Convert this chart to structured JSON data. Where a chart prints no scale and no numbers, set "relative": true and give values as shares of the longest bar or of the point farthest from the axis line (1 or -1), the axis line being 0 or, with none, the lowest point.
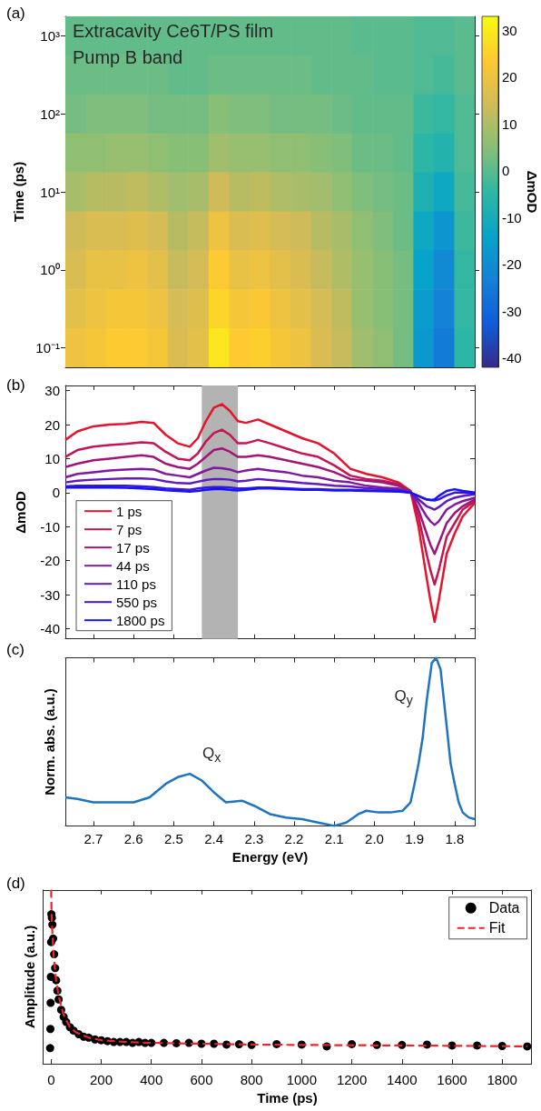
{
  "chart_data": [
    {
      "type": "heatmap",
      "title": "(a)",
      "ylabel": "Time (ps)",
      "clabel": "ΔmOD",
      "annotations": [
        "Extracavity Ce6T/PS film",
        "Pump B band"
      ],
      "categories": [
        null,
        null,
        null,
        null,
        null,
        null,
        null,
        null,
        null,
        null,
        null,
        null,
        null,
        null,
        null,
        null,
        null,
        null,
        null,
        null
      ],
      "y_categories": [
        "10³",
        null,
        "10²",
        null,
        "10¹",
        null,
        "10⁰",
        null,
        "10⁻¹"
      ],
      "cells": [
        [
          1,
          1,
          1,
          1,
          1,
          1,
          1,
          1,
          1,
          1,
          1,
          1,
          1,
          1,
          0,
          0,
          0,
          -1,
          -1,
          0
        ],
        [
          2,
          2,
          2,
          2,
          2,
          1,
          1,
          2,
          2,
          2,
          2,
          2,
          1,
          1,
          1,
          0,
          0,
          -1,
          -2,
          0
        ],
        [
          3,
          4,
          4,
          4,
          3,
          3,
          3,
          5,
          4,
          4,
          3,
          3,
          3,
          2,
          1,
          1,
          1,
          -3,
          -4,
          -1
        ],
        [
          6,
          6,
          7,
          7,
          6,
          5,
          5,
          8,
          7,
          7,
          6,
          6,
          5,
          4,
          2,
          2,
          1,
          -5,
          -7,
          -1
        ],
        [
          9,
          11,
          11,
          12,
          10,
          8,
          9,
          14,
          11,
          12,
          10,
          9,
          8,
          6,
          4,
          3,
          2,
          -8,
          -12,
          -2
        ],
        [
          14,
          16,
          16,
          17,
          15,
          11,
          13,
          20,
          16,
          17,
          15,
          14,
          11,
          9,
          6,
          4,
          2,
          -12,
          -18,
          -3
        ],
        [
          16,
          19,
          19,
          20,
          18,
          13,
          15,
          24,
          19,
          20,
          18,
          16,
          13,
          10,
          7,
          5,
          3,
          -14,
          -21,
          -4
        ],
        [
          18,
          20,
          22,
          22,
          20,
          15,
          17,
          26,
          22,
          23,
          20,
          18,
          15,
          12,
          7,
          5,
          3,
          -16,
          -23,
          -4
        ],
        [
          20,
          22,
          24,
          24,
          22,
          16,
          18,
          29,
          24,
          25,
          22,
          20,
          16,
          13,
          8,
          6,
          3,
          -17,
          -25,
          -5
        ]
      ],
      "clim": [
        -42,
        33
      ],
      "cticks": [
        -40,
        -30,
        -20,
        -10,
        0,
        10,
        20,
        30
      ],
      "tick_labels": "y"
    },
    {
      "type": "line",
      "title": "(b)",
      "ylabel": "ΔmOD",
      "x": [
        2.77,
        2.74,
        2.7,
        2.66,
        2.62,
        2.58,
        2.55,
        2.52,
        2.49,
        2.46,
        2.44,
        2.42,
        2.4,
        2.38,
        2.36,
        2.34,
        2.32,
        2.29,
        2.26,
        2.22,
        2.18,
        2.14,
        2.1,
        2.06,
        2.02,
        1.98,
        1.94,
        1.91,
        1.89,
        1.87,
        1.86,
        1.85,
        1.84,
        1.82,
        1.8,
        1.78,
        1.75
      ],
      "series": [
        {
          "name": "1 ps",
          "color": "#e5132b",
          "values": [
            15.5,
            18,
            19.5,
            20,
            20.2,
            20.8,
            20.5,
            17,
            14.5,
            13.5,
            16,
            21,
            25,
            26,
            24,
            21,
            20.5,
            21.5,
            20,
            18,
            16,
            14.5,
            11.5,
            7,
            5.5,
            4.5,
            3,
            0.5,
            -10,
            -25,
            -32,
            -38,
            -32,
            -18,
            -12,
            -7,
            -3
          ]
        },
        {
          "name": "7 ps",
          "color": "#c41554",
          "values": [
            10.5,
            12.5,
            13.5,
            14,
            14.3,
            14.8,
            14.5,
            12,
            10,
            9.5,
            11.5,
            15,
            17.5,
            18.5,
            17,
            14.5,
            14.5,
            15.5,
            14.5,
            13,
            11.5,
            10.5,
            8,
            5,
            4,
            3.5,
            2.5,
            0.5,
            -7,
            -18,
            -23,
            -27,
            -23,
            -13,
            -9,
            -5,
            -2.5
          ]
        },
        {
          "name": "17 ps",
          "color": "#a0157a",
          "values": [
            7.5,
            8.5,
            9.5,
            10,
            10.5,
            11,
            10.5,
            8.5,
            7.5,
            7,
            8.5,
            10.5,
            12.5,
            13,
            12,
            10.5,
            10.5,
            11,
            10.5,
            9.5,
            8.5,
            7.5,
            6,
            4,
            3.5,
            3,
            2,
            0.3,
            -5,
            -12,
            -15.5,
            -18,
            -15,
            -9,
            -6,
            -4,
            -2
          ]
        },
        {
          "name": "44 ps",
          "color": "#801a9e",
          "values": [
            4.5,
            5.5,
            6,
            6.5,
            6.8,
            7,
            6.8,
            5.5,
            5,
            4.5,
            5.5,
            6.5,
            7.3,
            7.2,
            6.8,
            6,
            6.5,
            7,
            6.5,
            6,
            5,
            4.5,
            3.5,
            3,
            2,
            1.5,
            1.2,
            0,
            -3,
            -7,
            -8.5,
            -9.5,
            -8.5,
            -5,
            -3.5,
            -2.5,
            -1.5
          ]
        },
        {
          "name": "110 ps",
          "color": "#6219c0",
          "values": [
            3,
            3.5,
            3.8,
            4,
            4.2,
            4.2,
            4,
            3.3,
            2.8,
            2.7,
            3.2,
            3.7,
            4,
            4,
            3.8,
            3.3,
            3.5,
            4,
            3.7,
            3.3,
            2.8,
            2.5,
            2,
            1.8,
            1.3,
            1,
            0.8,
            0,
            -2,
            -4,
            -4.5,
            -5,
            -4.3,
            -2.5,
            -1.5,
            -1,
            -0.5
          ]
        },
        {
          "name": "550 ps",
          "color": "#3a14e0",
          "values": [
            1.8,
            2,
            2,
            2,
            2,
            1.8,
            1.6,
            1.2,
            1,
            0.8,
            1.2,
            1.5,
            1.6,
            1.6,
            1.5,
            1.2,
            1.2,
            1.5,
            1.5,
            1.3,
            1,
            1,
            0.8,
            0.8,
            0.6,
            0.5,
            0.5,
            0,
            -1,
            -2,
            -2.2,
            -2.3,
            -2,
            -0.8,
            0,
            0,
            -0.3
          ]
        },
        {
          "name": "1800 ps",
          "color": "#1414f5",
          "values": [
            1.5,
            1.5,
            1.5,
            1.5,
            1.4,
            1.2,
            1,
            0.7,
            0.5,
            0.3,
            0.5,
            0.8,
            1,
            1,
            0.8,
            0.6,
            0.8,
            1.2,
            1.2,
            1,
            0.8,
            0.8,
            0.6,
            0.6,
            0.5,
            0.4,
            0.3,
            0,
            -1,
            -2,
            -2.2,
            -2,
            -1,
            0.5,
            1,
            0.5,
            0
          ]
        }
      ],
      "xlim": [
        2.77,
        1.75
      ],
      "xticks": [
        2.7,
        2.6,
        2.5,
        2.4,
        2.3,
        2.2,
        2.1,
        2,
        1.9,
        1.8
      ],
      "ylim": [
        -43,
        31.5
      ],
      "yticks": [
        -40,
        -30,
        -20,
        -10,
        0,
        10,
        20,
        30
      ],
      "bands": [
        {
          "axis": "x",
          "from": 2.43,
          "to": 2.34,
          "color": "#b3b3b3"
        }
      ],
      "legend": "bottom left",
      "tick_labels": "y"
    },
    {
      "type": "line",
      "title": "(c)",
      "xlabel": "Energy (eV)",
      "ylabel": "Norm. abs. (a.u.)",
      "relative": true,
      "x": [
        2.77,
        2.74,
        2.7,
        2.65,
        2.6,
        2.56,
        2.52,
        2.49,
        2.46,
        2.43,
        2.4,
        2.37,
        2.33,
        2.3,
        2.26,
        2.22,
        2.18,
        2.14,
        2.1,
        2.07,
        2.04,
        2.02,
        1.99,
        1.96,
        1.93,
        1.91,
        1.9,
        1.89,
        1.88,
        1.87,
        1.857,
        1.846,
        1.835,
        1.822,
        1.81,
        1.8,
        1.79,
        1.78,
        1.765,
        1.75
      ],
      "series": [
        {
          "color": "#1f74c0",
          "values": [
            0.17,
            0.16,
            0.14,
            0.14,
            0.14,
            0.17,
            0.25,
            0.29,
            0.31,
            0.27,
            0.2,
            0.14,
            0.15,
            0.12,
            0.07,
            0.05,
            0.04,
            0.02,
            0,
            0.02,
            0.07,
            0.09,
            0.08,
            0.08,
            0.09,
            0.14,
            0.25,
            0.37,
            0.52,
            0.74,
            0.97,
            1,
            0.93,
            0.64,
            0.37,
            0.25,
            0.14,
            0.08,
            0.05,
            0.04
          ]
        }
      ],
      "xlim": [
        2.77,
        1.75
      ],
      "xticks": [
        2.7,
        2.6,
        2.5,
        2.4,
        2.3,
        2.2,
        2.1,
        {
          "value": 2,
          "label": "2.0"
        },
        1.9,
        1.8
      ],
      "annotations": [
        {
          "text": "Q$_{x}$",
          "x": 2.46,
          "y": 0.31
        },
        {
          "text": "Q$_{y}$",
          "x": 1.846,
          "y": 1
        }
      ],
      "tick_labels": "x"
    },
    {
      "type": "scatter",
      "title": "(d)",
      "xlabel": "Time (ps)",
      "ylabel": "Amplitude (a.u.)",
      "relative": true,
      "series": [
        {
          "name": "Data",
          "type": "scatter",
          "color": "#000000",
          "marker": "circle",
          "x": [
            -4,
            -3,
            -2,
            -1,
            0,
            1,
            3,
            5,
            8,
            12,
            16,
            20,
            25,
            30,
            40,
            50,
            60,
            75,
            90,
            110,
            130,
            150,
            175,
            200,
            225,
            250,
            275,
            300,
            325,
            350,
            375,
            400,
            450,
            500,
            550,
            600,
            650,
            700,
            750,
            800,
            900,
            1000,
            1100,
            1200,
            1300,
            1400,
            1500,
            1600,
            1700,
            1800,
            1900
          ],
          "values": [
            0.09,
            0.2,
            0.35,
            0.5,
            0.7,
            0.86,
            0.84,
            0.8,
            0.72,
            0.63,
            0.55,
            0.48,
            0.42,
            0.37,
            0.31,
            0.27,
            0.24,
            0.21,
            0.19,
            0.17,
            0.155,
            0.15,
            0.14,
            0.135,
            0.13,
            0.125,
            0.125,
            0.125,
            0.12,
            0.125,
            0.12,
            0.12,
            0.12,
            0.118,
            0.12,
            0.115,
            0.115,
            0.11,
            0.112,
            0.108,
            0.113,
            0.11,
            0.1,
            0.113,
            0.108,
            0.108,
            0.11,
            0.105,
            0.105,
            0.102,
            0.1
          ]
        },
        {
          "name": "Fit",
          "type": "line",
          "color": "#e8262b",
          "line_style": "dashed",
          "marker": "none",
          "x": [
            0,
            2,
            5,
            10,
            20,
            30,
            50,
            75,
            100,
            150,
            200,
            300,
            400,
            600,
            800,
            1000,
            1400,
            1900
          ],
          "values": [
            1,
            0.85,
            0.75,
            0.62,
            0.48,
            0.39,
            0.28,
            0.21,
            0.18,
            0.15,
            0.135,
            0.125,
            0.12,
            0.115,
            0.11,
            0.108,
            0.105,
            0.1
          ]
        }
      ],
      "xlim": [
        -32,
        1917
      ],
      "xticks": [
        0,
        200,
        400,
        600,
        800,
        1000,
        1200,
        1400,
        1600,
        1800
      ],
      "legend": "top right",
      "tick_labels": "x"
    }
  ]
}
